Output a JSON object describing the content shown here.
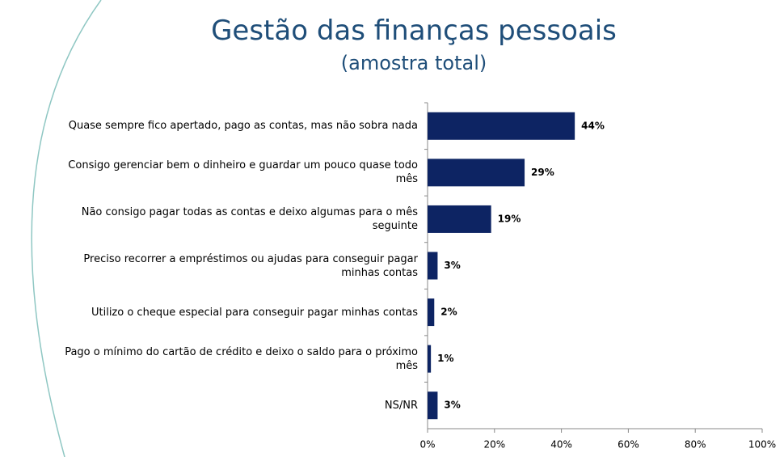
{
  "chart_data": {
    "type": "bar",
    "orientation": "horizontal",
    "title": "Gestão das finanças pessoais",
    "subtitle": "(amostra total)",
    "categories": [
      "Quase sempre fico apertado, pago as contas, mas não sobra nada",
      "Consigo gerenciar bem o dinheiro e guardar um pouco quase todo mês",
      "Não consigo pagar todas as contas e deixo algumas para o mês seguinte",
      "Preciso recorrer a empréstimos ou ajudas para conseguir pagar minhas contas",
      "Utilizo o cheque especial para conseguir pagar minhas contas",
      "Pago o mínimo do cartão de crédito e deixo o saldo para o próximo mês",
      "NS/NR"
    ],
    "values": [
      44,
      29,
      19,
      3,
      2,
      1,
      3
    ],
    "value_labels": [
      "44%",
      "29%",
      "19%",
      "3%",
      "2%",
      "1%",
      "3%"
    ],
    "color": "#0d2463",
    "xlim": [
      0,
      100
    ],
    "xticks": [
      {
        "value": 0,
        "label": "0%"
      },
      {
        "value": 20,
        "label": "20%"
      },
      {
        "value": 40,
        "label": "40%"
      },
      {
        "value": 60,
        "label": "60%"
      },
      {
        "value": 80,
        "label": "80%"
      },
      {
        "value": 100,
        "label": "100%"
      }
    ]
  }
}
